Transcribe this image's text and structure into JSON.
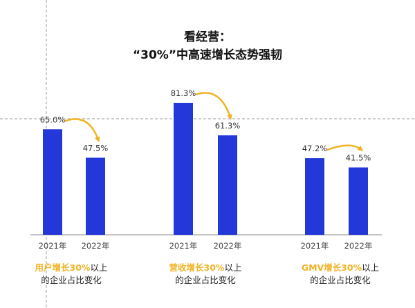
{
  "chart_data": {
    "type": "bar",
    "title_line1": "看经营：",
    "title_line2": "“30%”中高速增长态势强韧",
    "ylim": [
      0,
      100
    ],
    "groups": [
      {
        "categories": [
          "2021年",
          "2022年"
        ],
        "values": [
          65.0,
          47.5
        ],
        "value_labels": [
          "65.0%",
          "47.5%"
        ],
        "caption_highlight": "用户增长30%",
        "caption_rest": "以上",
        "caption_line2": "的企业占比变化"
      },
      {
        "categories": [
          "2021年",
          "2022年"
        ],
        "values": [
          81.3,
          61.3
        ],
        "value_labels": [
          "81.3%",
          "61.3%"
        ],
        "caption_highlight": "营收增长30%",
        "caption_rest": "以上",
        "caption_line2": "的企业占比变化"
      },
      {
        "categories": [
          "2021年",
          "2022年"
        ],
        "values": [
          47.2,
          41.5
        ],
        "value_labels": [
          "47.2%",
          "41.5%"
        ],
        "caption_highlight": "GMV增长30%",
        "caption_rest": "以上",
        "caption_line2": "的企业占比变化"
      }
    ]
  },
  "colors": {
    "bar": "#2437D9",
    "arrow": "#F0B323",
    "highlight": "#F0B323",
    "guide": "#9A9A9A",
    "axis": "#8A8A8A"
  }
}
